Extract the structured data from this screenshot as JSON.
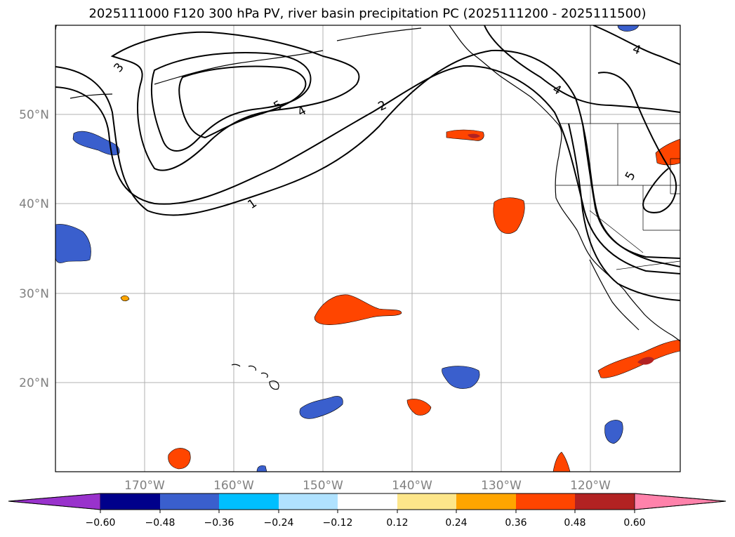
{
  "title": "2025111000 F120 300 hPa PV, river basin precipitation PC (2025111200 - 2025111500)",
  "lat_ticks": [
    "50°N",
    "40°N",
    "30°N",
    "20°N"
  ],
  "lon_ticks": [
    "170°W",
    "160°W",
    "150°W",
    "140°W",
    "130°W",
    "120°W"
  ],
  "colorbar": {
    "ticks": [
      "−0.60",
      "−0.48",
      "−0.36",
      "−0.24",
      "−0.12",
      "0.12",
      "0.24",
      "0.36",
      "0.48",
      "0.60"
    ],
    "colors": [
      "#9932cc",
      "#00008b",
      "#3a5fcd",
      "#00bfff",
      "#b0e2ff",
      "#ffffff",
      "#fde68a",
      "#ffa500",
      "#ff4500",
      "#b22222",
      "#ff82ab"
    ]
  },
  "contour_labels": [
    "3",
    "5",
    "4",
    "2",
    "1",
    "4",
    "4",
    "5"
  ],
  "chart_data": {
    "type": "heatmap",
    "title": "2025111000 F120 300 hPa PV, river basin precipitation PC (2025111200 - 2025111500)",
    "xlabel": "",
    "ylabel": "",
    "lon_range": [
      -180,
      -110
    ],
    "lat_range": [
      10,
      60
    ],
    "contour_field": "300 hPa PV",
    "contour_levels": [
      1,
      2,
      3,
      4,
      5
    ],
    "shaded_field": "river basin precipitation PC",
    "color_levels": [
      -0.6,
      -0.48,
      -0.36,
      -0.24,
      -0.12,
      0.12,
      0.24,
      0.36,
      0.48,
      0.6
    ]
  }
}
